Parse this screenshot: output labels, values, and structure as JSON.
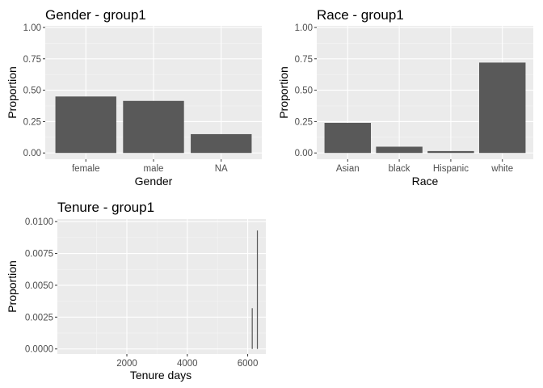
{
  "colors": {
    "panel": "#ebebeb",
    "grid_major": "#ffffff",
    "grid_minor": "#f5f5f5",
    "bar": "#595959",
    "tick_text": "#4d4d4d"
  },
  "chart_data": [
    {
      "type": "bar",
      "title": "Gender - group1",
      "xlabel": "Gender",
      "ylabel": "Proportion",
      "categories": [
        "female",
        "male",
        "NA"
      ],
      "values": [
        0.45,
        0.415,
        0.15
      ],
      "ylim": [
        0,
        1
      ],
      "yticks": [
        0,
        0.25,
        0.5,
        0.75,
        1
      ],
      "ytick_labels": [
        "0.00",
        "0.25",
        "0.50",
        "0.75",
        "1.00"
      ],
      "grid": true
    },
    {
      "type": "bar",
      "title": "Race - group1",
      "xlabel": "Race",
      "ylabel": "Proportion",
      "categories": [
        "Asian",
        "black",
        "Hispanic",
        "white"
      ],
      "values": [
        0.24,
        0.05,
        0.015,
        0.72
      ],
      "ylim": [
        0,
        1
      ],
      "yticks": [
        0,
        0.25,
        0.5,
        0.75,
        1
      ],
      "ytick_labels": [
        "0.00",
        "0.25",
        "0.50",
        "0.75",
        "1.00"
      ],
      "grid": true
    },
    {
      "type": "bar",
      "title": "Tenure - group1",
      "xlabel": "Tenure days",
      "ylabel": "Proportion",
      "x": [
        6150,
        6320
      ],
      "values": [
        0.0032,
        0.0093
      ],
      "xlim": [
        -300,
        6600
      ],
      "xticks": [
        2000,
        4000,
        6000
      ],
      "xtick_labels": [
        "2000",
        "4000",
        "6000"
      ],
      "ylim": [
        -0.0004,
        0.0102
      ],
      "yticks": [
        0,
        0.0025,
        0.005,
        0.0075,
        0.01
      ],
      "ytick_labels": [
        "0.0000",
        "0.0025",
        "0.0050",
        "0.0075",
        "0.0100"
      ],
      "grid": true
    }
  ]
}
